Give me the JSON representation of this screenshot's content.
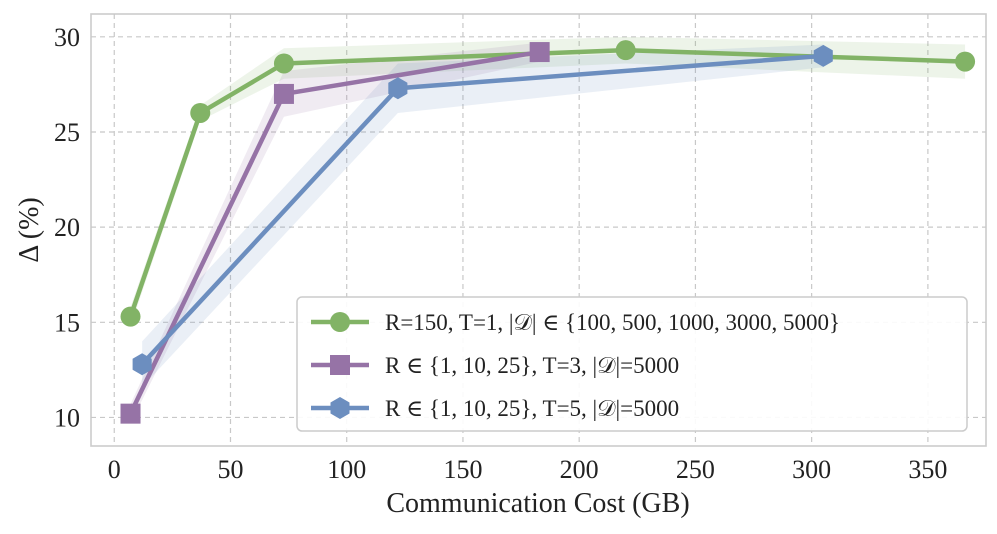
{
  "chart_data": {
    "type": "line",
    "xlabel": "Communication Cost (GB)",
    "ylabel": "Δ (%)",
    "xlim": [
      -10,
      375
    ],
    "ylim": [
      8.5,
      31.2
    ],
    "xticks": [
      0,
      50,
      100,
      150,
      200,
      250,
      300,
      350
    ],
    "yticks": [
      10,
      15,
      20,
      25,
      30
    ],
    "grid": true,
    "legend_position": "lower-right",
    "series": [
      {
        "name": "R=150, T=1, |𝒟| ∈ {100, 500, 1000, 3000, 5000}",
        "color": "#82b366",
        "marker": "circle",
        "x": [
          7,
          37,
          73,
          220,
          366
        ],
        "y": [
          15.3,
          26.0,
          28.6,
          29.3,
          28.7
        ],
        "band": [
          0.5,
          0.4,
          0.8,
          0.7,
          0.9
        ]
      },
      {
        "name": "R ∈ {1, 10, 25}, T=3, |𝒟|=5000",
        "color": "#9673a6",
        "marker": "square",
        "x": [
          7,
          73,
          183
        ],
        "y": [
          10.2,
          27.0,
          29.2
        ],
        "band": [
          0.5,
          1.2,
          0.5
        ]
      },
      {
        "name": "R ∈ {1, 10, 25}, T=5, |𝒟|=5000",
        "color": "#6c8ebf",
        "marker": "hexagon",
        "x": [
          12,
          122,
          305
        ],
        "y": [
          12.8,
          27.3,
          29.0
        ],
        "band": [
          1.2,
          1.3,
          0.6
        ]
      }
    ]
  }
}
